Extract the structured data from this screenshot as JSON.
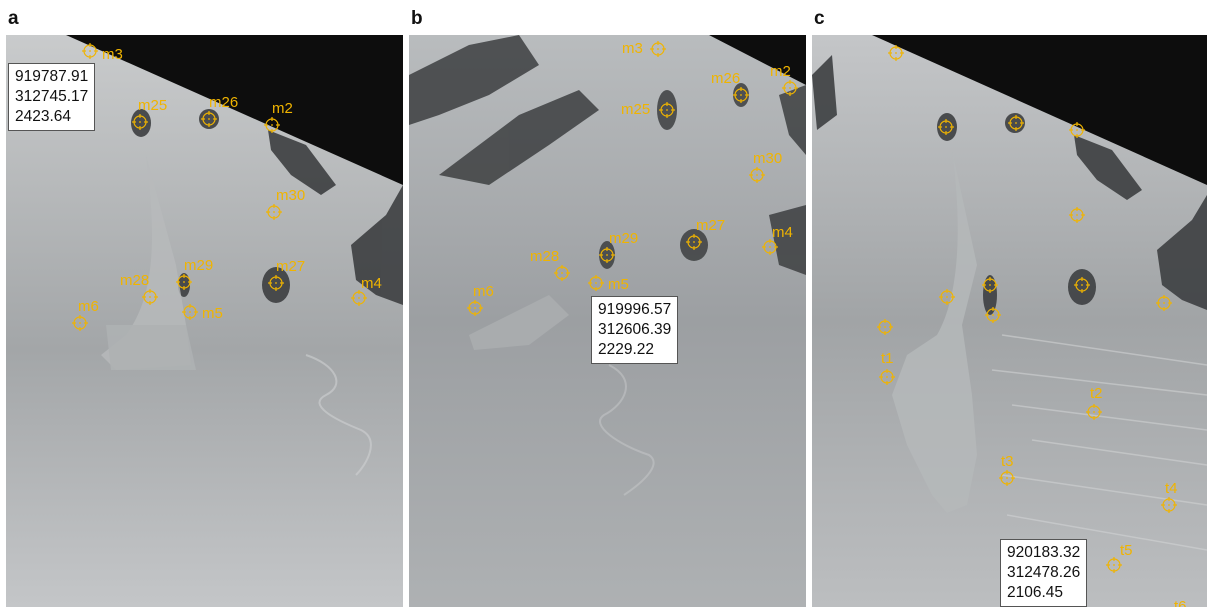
{
  "panels": [
    {
      "letter": "a",
      "coords": [
        "919787.91",
        "312745.17",
        "2423.64"
      ],
      "markers": [
        {
          "label": "m3"
        },
        {
          "label": "m25"
        },
        {
          "label": "m26"
        },
        {
          "label": "m2"
        },
        {
          "label": "m30"
        },
        {
          "label": "m28"
        },
        {
          "label": "m29"
        },
        {
          "label": "m27"
        },
        {
          "label": "m4"
        },
        {
          "label": "m6"
        },
        {
          "label": "m5"
        }
      ]
    },
    {
      "letter": "b",
      "coords": [
        "919996.57",
        "312606.39",
        "2229.22"
      ],
      "markers": [
        {
          "label": "m3"
        },
        {
          "label": "m26"
        },
        {
          "label": "m2"
        },
        {
          "label": "m25"
        },
        {
          "label": "m30"
        },
        {
          "label": "m29"
        },
        {
          "label": "m27"
        },
        {
          "label": "m4"
        },
        {
          "label": "m28"
        },
        {
          "label": "m6"
        },
        {
          "label": "m5"
        }
      ]
    },
    {
      "letter": "c",
      "coords": [
        "920183.32",
        "312478.26",
        "2106.45"
      ],
      "markers": [
        {
          "label": "t1"
        },
        {
          "label": "t2"
        },
        {
          "label": "t3"
        },
        {
          "label": "t4"
        },
        {
          "label": "t5"
        },
        {
          "label": "t6"
        }
      ]
    }
  ],
  "colors": {
    "marker": "#f0b400",
    "sky": "#0d0d0d"
  }
}
